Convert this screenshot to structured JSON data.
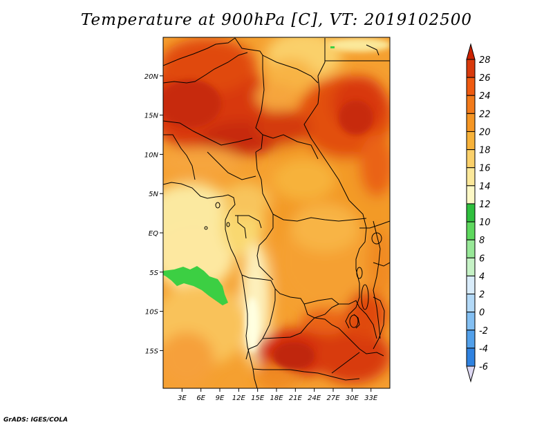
{
  "title": "Temperature at 900hPa [C], VT: 2019102500",
  "footer": "GrADS: IGES/COLA",
  "map": {
    "lat_ticks": [
      "20N",
      "15N",
      "10N",
      "5N",
      "EQ",
      "5S",
      "10S",
      "15S"
    ],
    "lat_values": [
      20,
      15,
      10,
      5,
      0,
      -5,
      -10,
      -15
    ],
    "lon_ticks": [
      "3E",
      "6E",
      "9E",
      "12E",
      "15E",
      "18E",
      "21E",
      "24E",
      "27E",
      "30E",
      "33E"
    ],
    "lon_values": [
      3,
      6,
      9,
      12,
      15,
      18,
      21,
      24,
      27,
      30,
      33
    ]
  },
  "colorbar": {
    "labels": [
      "28",
      "26",
      "24",
      "22",
      "20",
      "18",
      "16",
      "14",
      "12",
      "10",
      "8",
      "6",
      "4",
      "2",
      "0",
      "-2",
      "-4",
      "-6"
    ],
    "colors": [
      "#f2e2ad",
      "#ffffc8",
      "#f7eea0",
      "#fadb78",
      "#f9c25a",
      "#f6a53c",
      "#f08a24",
      "#e86a1a",
      "#e04a10",
      "#d42d0a",
      "#b81b06",
      "#3bcf41",
      "#78e67a",
      "#a8f0a8",
      "#d2f5d2",
      "#cfe6f8",
      "#a6d3f4",
      "#6eb0ec",
      "#3e8ee0",
      "#1f6fd0",
      "#1355b9",
      "#0b3ea0",
      "#07267a",
      "#a00000",
      "#e0dcf5"
    ],
    "segments": [
      "#d83a0c",
      "#ef5a10",
      "#f27a1a",
      "#f59624",
      "#f7b23a",
      "#fad06a",
      "#fbe89a",
      "#fdf8c6",
      "#2fbf3e",
      "#5ed85e",
      "#98e898",
      "#c6f2c6",
      "#d9ecfa",
      "#b3d9f7",
      "#83bff2",
      "#52a0ea",
      "#2f82e0",
      "#1a68d2",
      "#0f52bc",
      "#093a9a",
      "#04207a"
    ],
    "top_arrow": "#cc2200",
    "bottom_arrow": "#ddd8f2"
  }
}
